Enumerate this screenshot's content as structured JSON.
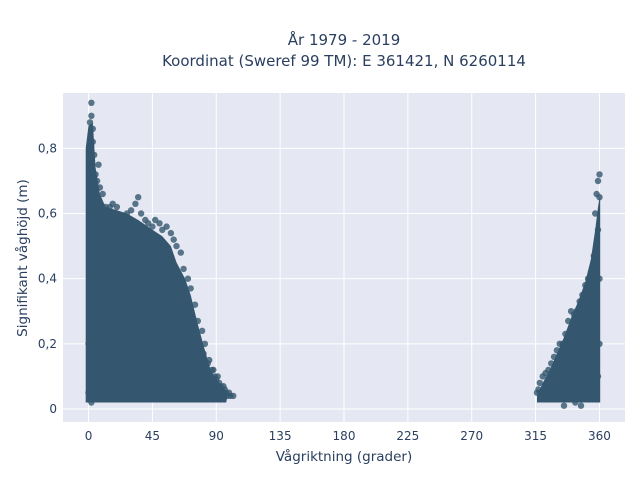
{
  "chart_data": {
    "type": "scatter",
    "title": "År 1979 - 2019",
    "subtitle": "Koordinat (Sweref 99 TM): E 361421, N 6260114",
    "xlabel": "Vågriktning (grader)",
    "ylabel": "Signifikant våghöjd (m)",
    "xlim": [
      -18,
      378
    ],
    "ylim": [
      -0.04,
      0.97
    ],
    "x_ticks": [
      0,
      45,
      90,
      135,
      180,
      225,
      270,
      315,
      360
    ],
    "x_tick_labels": [
      "0",
      "45",
      "90",
      "135",
      "180",
      "225",
      "270",
      "315",
      "360"
    ],
    "y_ticks": [
      0,
      0.2,
      0.4,
      0.6,
      0.8
    ],
    "y_tick_labels": [
      "0",
      "0,2",
      "0,4",
      "0,6",
      "0,8"
    ],
    "grid": true,
    "marker_color": "#34566e",
    "background_color": "#e5e8f2",
    "series": [
      {
        "x": [
          0,
          1,
          1,
          2,
          2,
          3,
          3,
          4,
          5,
          6,
          7,
          8,
          10,
          12,
          14,
          15,
          17,
          20,
          22,
          25,
          27,
          30,
          33,
          35,
          37,
          40,
          42,
          45,
          47,
          50,
          52,
          55,
          58,
          60,
          62,
          65,
          67,
          70,
          72,
          75,
          77,
          80,
          82,
          85,
          88,
          90,
          92,
          95,
          97,
          100,
          2,
          5,
          8,
          12,
          16,
          20,
          25,
          30,
          35,
          40,
          45,
          50,
          55,
          60,
          65,
          70,
          75,
          80,
          85,
          90,
          95,
          3,
          10,
          20,
          30,
          40,
          50,
          60,
          70,
          80,
          90,
          1,
          2,
          4,
          9,
          14,
          22,
          28,
          33,
          43,
          52,
          58,
          63,
          3,
          6,
          11,
          21,
          31,
          37,
          42,
          47,
          55,
          62,
          68,
          72,
          78,
          84,
          89,
          93,
          98,
          0,
          1,
          7,
          13,
          18,
          26,
          34,
          41,
          48,
          56,
          64,
          73,
          81,
          87,
          91,
          96,
          99,
          102
        ],
        "y": [
          0.05,
          0.8,
          0.88,
          0.94,
          0.9,
          0.86,
          0.82,
          0.78,
          0.72,
          0.7,
          0.75,
          0.68,
          0.66,
          0.62,
          0.6,
          0.62,
          0.63,
          0.62,
          0.59,
          0.58,
          0.6,
          0.61,
          0.63,
          0.65,
          0.6,
          0.58,
          0.57,
          0.56,
          0.58,
          0.57,
          0.55,
          0.56,
          0.54,
          0.52,
          0.5,
          0.48,
          0.43,
          0.4,
          0.37,
          0.32,
          0.27,
          0.24,
          0.2,
          0.15,
          0.12,
          0.09,
          0.08,
          0.07,
          0.05,
          0.04,
          0.5,
          0.45,
          0.4,
          0.38,
          0.35,
          0.32,
          0.3,
          0.28,
          0.27,
          0.25,
          0.24,
          0.22,
          0.2,
          0.18,
          0.16,
          0.15,
          0.12,
          0.1,
          0.08,
          0.07,
          0.05,
          0.3,
          0.25,
          0.2,
          0.18,
          0.15,
          0.13,
          0.11,
          0.09,
          0.07,
          0.06,
          0.03,
          0.02,
          0.05,
          0.04,
          0.06,
          0.08,
          0.1,
          0.12,
          0.14,
          0.16,
          0.18,
          0.2,
          0.6,
          0.55,
          0.5,
          0.45,
          0.4,
          0.38,
          0.36,
          0.34,
          0.32,
          0.28,
          0.25,
          0.22,
          0.18,
          0.14,
          0.1,
          0.07,
          0.04,
          0.2,
          0.35,
          0.48,
          0.52,
          0.5,
          0.46,
          0.42,
          0.4,
          0.37,
          0.33,
          0.29,
          0.23,
          0.17,
          0.12,
          0.1,
          0.06,
          0.05,
          0.04
        ]
      },
      {
        "x": [
          357,
          358,
          359,
          360,
          360,
          359,
          358,
          356,
          355,
          354,
          352,
          350,
          348,
          346,
          344,
          342,
          340,
          338,
          336,
          334,
          332,
          330,
          328,
          326,
          324,
          322,
          320,
          318,
          317,
          316,
          360,
          358,
          355,
          352,
          348,
          344,
          340,
          336,
          332,
          328,
          324,
          320,
          360,
          357,
          353,
          349,
          345,
          341,
          337,
          333,
          329,
          325,
          321,
          359,
          356,
          351,
          346,
          342,
          338,
          334,
          330,
          326,
          322,
          318,
          343,
          347,
          335
        ],
        "y": [
          0.6,
          0.66,
          0.7,
          0.72,
          0.65,
          0.55,
          0.5,
          0.47,
          0.43,
          0.42,
          0.4,
          0.38,
          0.35,
          0.33,
          0.3,
          0.29,
          0.3,
          0.27,
          0.23,
          0.2,
          0.2,
          0.18,
          0.16,
          0.14,
          0.12,
          0.11,
          0.1,
          0.08,
          0.06,
          0.05,
          0.4,
          0.35,
          0.3,
          0.25,
          0.2,
          0.15,
          0.12,
          0.1,
          0.08,
          0.07,
          0.06,
          0.05,
          0.2,
          0.18,
          0.16,
          0.14,
          0.12,
          0.1,
          0.08,
          0.07,
          0.06,
          0.05,
          0.05,
          0.1,
          0.09,
          0.08,
          0.07,
          0.06,
          0.05,
          0.04,
          0.04,
          0.03,
          0.04,
          0.05,
          0.02,
          0.01,
          0.01
        ]
      }
    ]
  }
}
